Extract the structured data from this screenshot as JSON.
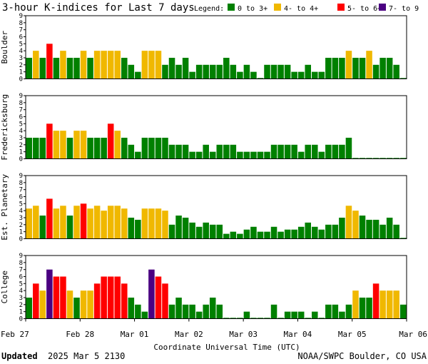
{
  "chart_data": {
    "type": "bar",
    "title": "3-hour K-indices for Last 7 days",
    "legend_label": "Legend:",
    "legend": [
      {
        "label": "0 to 3+",
        "color": "#008000"
      },
      {
        "label": "4- to 4+",
        "color": "#f0b800"
      },
      {
        "label": "5- to 6+",
        "color": "#ff0000"
      },
      {
        "label": "7- to 9",
        "color": "#4b0082"
      }
    ],
    "ylim": [
      0,
      9
    ],
    "yticks": [
      "0",
      "1",
      "2",
      "3",
      "4",
      "5",
      "6",
      "7",
      "8",
      "9"
    ],
    "x_ticks": [
      "Feb 27",
      "Feb 28",
      "Mar 01",
      "Mar 02",
      "Mar 03",
      "Mar 04",
      "Mar 05",
      "Mar 06"
    ],
    "xlabel": "Coordinate Universal Time (UTC)",
    "panels": [
      {
        "name": "Boulder",
        "values": [
          3,
          4,
          3,
          5,
          3,
          4,
          3,
          3,
          4,
          3,
          4,
          4,
          4,
          4,
          3,
          2,
          1,
          4,
          4,
          4,
          2,
          3,
          2,
          3,
          1,
          2,
          2,
          2,
          2,
          3,
          2,
          1,
          2,
          1,
          0,
          2,
          2,
          2,
          2,
          1,
          1,
          2,
          1,
          1,
          3,
          3,
          3,
          4,
          3,
          3,
          4,
          2,
          3,
          3,
          2,
          0
        ]
      },
      {
        "name": "Fredericksburg",
        "values": [
          3,
          3,
          3,
          5,
          4,
          4,
          3,
          4,
          4,
          3,
          3,
          3,
          5,
          4,
          3,
          2,
          1,
          3,
          3,
          3,
          3,
          2,
          2,
          2,
          1,
          1,
          2,
          1,
          2,
          2,
          2,
          1,
          1,
          1,
          1,
          1,
          2,
          2,
          2,
          2,
          1,
          2,
          2,
          1,
          2,
          2,
          2,
          3,
          0,
          0,
          0,
          0,
          0,
          0,
          0,
          0
        ]
      },
      {
        "name": "Est. Planetary",
        "values": [
          4.3,
          4.7,
          3.3,
          5.7,
          4.3,
          4.7,
          3.3,
          4.7,
          5,
          4.3,
          4.7,
          4,
          4.7,
          4.7,
          4.3,
          3,
          2.7,
          4.3,
          4.3,
          4.3,
          4,
          2,
          3.3,
          3,
          2.3,
          1.7,
          2.3,
          2,
          2,
          0.7,
          1,
          0.7,
          1.3,
          1.7,
          1,
          1,
          1.7,
          1,
          1.3,
          1.3,
          1.7,
          2.3,
          1.7,
          1.3,
          2,
          2,
          3,
          4.7,
          4,
          3.3,
          2.7,
          2.7,
          2,
          3,
          2,
          0
        ]
      },
      {
        "name": "College",
        "values": [
          3,
          5,
          4,
          7,
          6,
          6,
          4,
          3,
          4,
          4,
          5,
          6,
          6,
          6,
          5,
          3,
          2,
          1,
          7,
          6,
          5,
          2,
          3,
          2,
          2,
          1,
          2,
          3,
          2,
          0,
          0,
          0,
          1,
          0,
          0,
          0,
          2,
          0,
          1,
          1,
          1,
          0,
          1,
          0,
          2,
          2,
          1,
          2,
          4,
          3,
          3,
          5,
          4,
          4,
          4,
          2
        ]
      }
    ]
  },
  "footer": {
    "updated_label": "Updated",
    "updated_value": "2025 Mar  5 2130",
    "credit": "NOAA/SWPC Boulder, CO USA"
  }
}
